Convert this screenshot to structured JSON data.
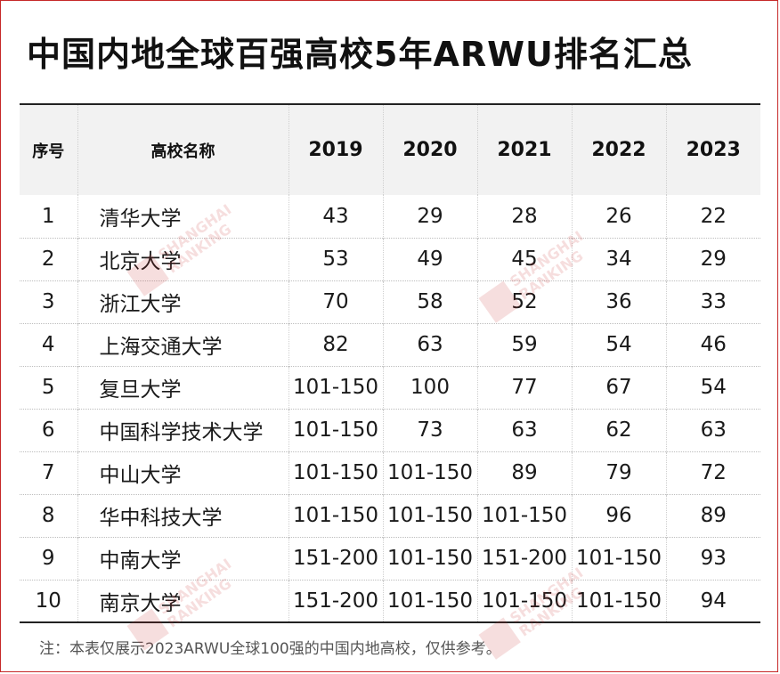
{
  "title": "中国内地全球百强高校5年ARWU排名汇总",
  "table": {
    "headers": [
      "序号",
      "高校名称",
      "2019",
      "2020",
      "2021",
      "2022",
      "2023"
    ],
    "rows": [
      [
        "1",
        "清华大学",
        "43",
        "29",
        "28",
        "26",
        "22"
      ],
      [
        "2",
        "北京大学",
        "53",
        "49",
        "45",
        "34",
        "29"
      ],
      [
        "3",
        "浙江大学",
        "70",
        "58",
        "52",
        "36",
        "33"
      ],
      [
        "4",
        "上海交通大学",
        "82",
        "63",
        "59",
        "54",
        "46"
      ],
      [
        "5",
        "复旦大学",
        "101-150",
        "100",
        "77",
        "67",
        "54"
      ],
      [
        "6",
        "中国科学技术大学",
        "101-150",
        "73",
        "63",
        "62",
        "63"
      ],
      [
        "7",
        "中山大学",
        "101-150",
        "101-150",
        "89",
        "79",
        "72"
      ],
      [
        "8",
        "华中科技大学",
        "101-150",
        "101-150",
        "101-150",
        "96",
        "89"
      ],
      [
        "9",
        "中南大学",
        "151-200",
        "101-150",
        "151-200",
        "101-150",
        "93"
      ],
      [
        "10",
        "南京大学",
        "151-200",
        "101-150",
        "101-150",
        "101-150",
        "94"
      ]
    ]
  },
  "note": "注：本表仅展示2023ARWU全球100强的中国内地高校，仅供参考。",
  "watermark": {
    "line1": "SHANGHAI",
    "line2": "RANKING"
  },
  "colors": {
    "border_accent": "#c62828",
    "header_bg": "#f2f2f2"
  }
}
